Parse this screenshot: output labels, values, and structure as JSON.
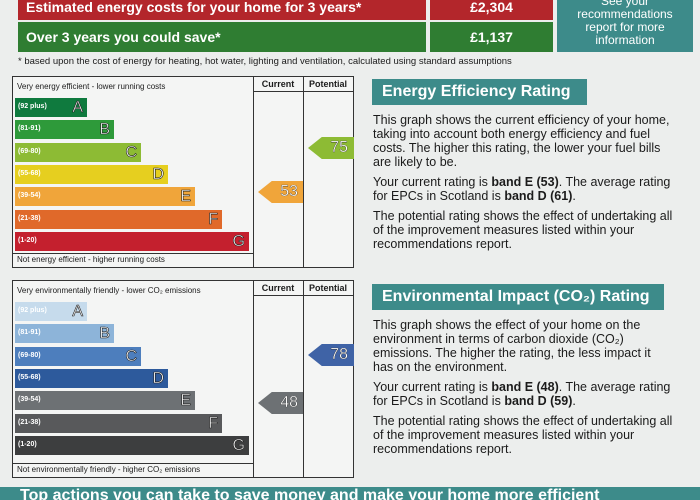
{
  "costs": {
    "rows": [
      {
        "label": "Estimated energy costs for your home for 3 years*",
        "value": "£2,304"
      },
      {
        "label": "Over 3 years you could save*",
        "value": "£1,137"
      }
    ],
    "note": "See your recommendations report for more information",
    "footnote": "* based upon the cost of energy for heating, hot water, lighting and ventilation, calculated using standard assumptions"
  },
  "energy_chart": {
    "top_label": "Very energy efficient - lower running costs",
    "bottom_label": "Not energy efficient - higher running costs",
    "columns": [
      "Current",
      "Potential"
    ],
    "bands": [
      {
        "range": "(92 plus)",
        "letter": "A",
        "color": "#0f7a3e"
      },
      {
        "range": "(81-91)",
        "letter": "B",
        "color": "#2e9a3a"
      },
      {
        "range": "(69-80)",
        "letter": "C",
        "color": "#8dbb34"
      },
      {
        "range": "(55-68)",
        "letter": "D",
        "color": "#e6cf1f"
      },
      {
        "range": "(39-54)",
        "letter": "E",
        "color": "#f0a53a"
      },
      {
        "range": "(21-38)",
        "letter": "F",
        "color": "#e0692a"
      },
      {
        "range": "(1-20)",
        "letter": "G",
        "color": "#c4202e"
      }
    ],
    "current": 53,
    "current_color": "#f0a53a",
    "potential": 75,
    "potential_color": "#8dbb34"
  },
  "environment_chart": {
    "top_label": "Very environmentally friendly - lower CO₂ emissions",
    "bottom_label": "Not environmentally friendly - higher CO₂ emissions",
    "columns": [
      "Current",
      "Potential"
    ],
    "bands": [
      {
        "range": "(92 plus)",
        "letter": "A",
        "color": "#c6dbec"
      },
      {
        "range": "(81-91)",
        "letter": "B",
        "color": "#8db4d9"
      },
      {
        "range": "(69-80)",
        "letter": "C",
        "color": "#4d7ebd"
      },
      {
        "range": "(55-68)",
        "letter": "D",
        "color": "#2d5a9c"
      },
      {
        "range": "(39-54)",
        "letter": "E",
        "color": "#6d7174"
      },
      {
        "range": "(21-38)",
        "letter": "F",
        "color": "#58595b"
      },
      {
        "range": "(1-20)",
        "letter": "G",
        "color": "#3d3e3f"
      }
    ],
    "current": 48,
    "current_color": "#6d7174",
    "potential": 78,
    "potential_color": "#3f63a6"
  },
  "energy_text": {
    "heading": "Energy Efficiency Rating",
    "paragraphs": [
      [
        {
          "text": "This graph shows the current efficiency of your home, taking into account both energy efficiency and fuel costs. The higher this rating, the lower your fuel bills are likely to be."
        }
      ],
      [
        {
          "text": "Your current rating is "
        },
        {
          "text": "band E (53)",
          "bold": true
        },
        {
          "text": ". The average rating for EPCs in Scotland is "
        },
        {
          "text": "band D (61)",
          "bold": true
        },
        {
          "text": "."
        }
      ],
      [
        {
          "text": "The potential rating shows the effect of undertaking all of the improvement measures listed within your recommendations report."
        }
      ]
    ]
  },
  "environment_text": {
    "heading": "Environmental Impact (CO₂) Rating",
    "paragraphs": [
      [
        {
          "text": "This graph shows the effect of your home on the environment in terms of carbon dioxide (CO₂) emissions. The higher the rating, the less impact it has on the environment."
        }
      ],
      [
        {
          "text": "Your current rating is "
        },
        {
          "text": "band E (48)",
          "bold": true
        },
        {
          "text": ". The average rating for EPCs in Scotland is "
        },
        {
          "text": "band D (59)",
          "bold": true
        },
        {
          "text": "."
        }
      ],
      [
        {
          "text": "The potential rating shows the effect of undertaking all of the improvement measures listed within your recommendations report."
        }
      ]
    ]
  },
  "footer": "Top actions you can take to save money and make your home more efficient"
}
